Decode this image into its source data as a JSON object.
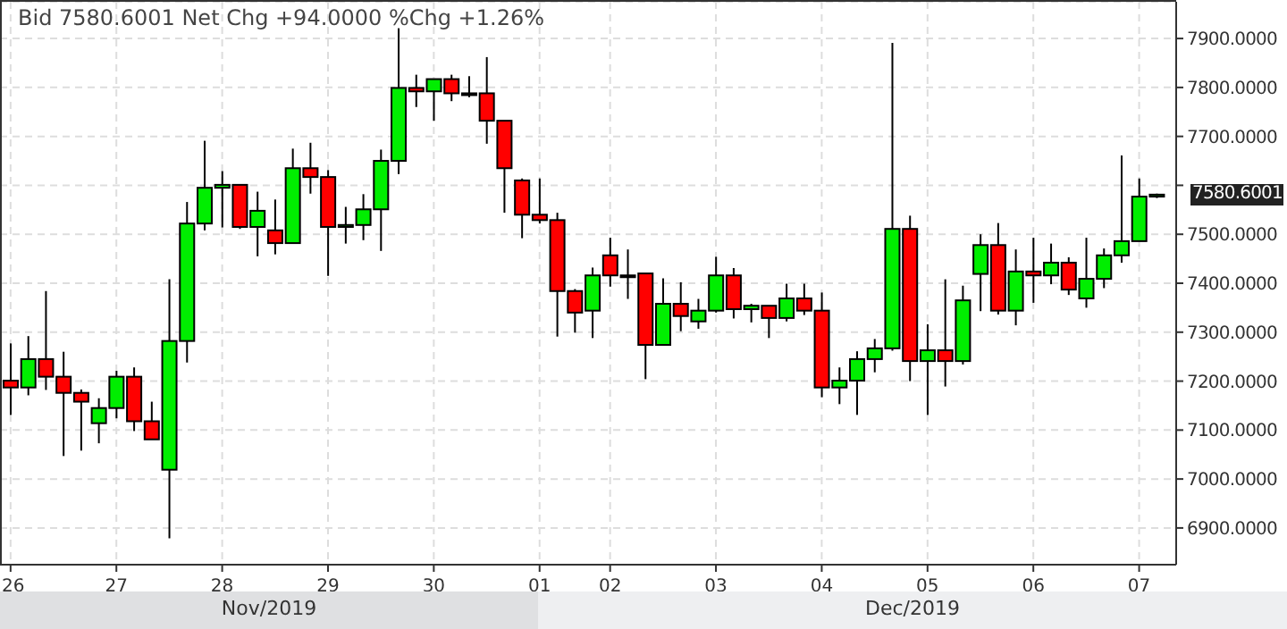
{
  "chart_data": {
    "type": "candlestick",
    "title": "Bid 7580.6001 Net Chg +94.0000 %Chg +1.26%",
    "categories": [
      "26",
      null,
      null,
      null,
      null,
      null,
      "27",
      null,
      null,
      null,
      null,
      null,
      "28",
      null,
      null,
      null,
      null,
      null,
      "29",
      null,
      null,
      null,
      null,
      null,
      "30",
      null,
      null,
      null,
      null,
      null,
      "01",
      null,
      null,
      null,
      "02",
      null,
      null,
      null,
      null,
      null,
      "03",
      null,
      null,
      null,
      null,
      null,
      "04",
      null,
      null,
      null,
      null,
      null,
      "05",
      null,
      null,
      null,
      null,
      null,
      "06",
      null,
      null,
      null,
      null,
      null,
      "07",
      null
    ],
    "ohlc": [
      [
        7201,
        7277,
        7131,
        7187
      ],
      [
        7187,
        7292,
        7171,
        7245
      ],
      [
        7245,
        7384,
        7182,
        7209
      ],
      [
        7209,
        7260,
        7047,
        7176
      ],
      [
        7176,
        7183,
        7058,
        7158
      ],
      [
        7114,
        7165,
        7073,
        7145
      ],
      [
        7145,
        7221,
        7124,
        7209
      ],
      [
        7209,
        7228,
        7098,
        7118
      ],
      [
        7118,
        7158,
        7081,
        7081
      ],
      [
        7019,
        7408,
        6879,
        7282
      ],
      [
        7282,
        7566,
        7238,
        7522
      ],
      [
        7522,
        7691,
        7508,
        7595
      ],
      [
        7595,
        7629,
        7514,
        7601
      ],
      [
        7601,
        7601,
        7511,
        7515
      ],
      [
        7515,
        7587,
        7455,
        7548
      ],
      [
        7508,
        7571,
        7459,
        7482
      ],
      [
        7482,
        7675,
        7482,
        7635
      ],
      [
        7635,
        7687,
        7583,
        7617
      ],
      [
        7617,
        7631,
        7415,
        7515
      ],
      [
        7515,
        7556,
        7481,
        7519
      ],
      [
        7519,
        7582,
        7488,
        7551
      ],
      [
        7551,
        7673,
        7466,
        7650
      ],
      [
        7650,
        7921,
        7623,
        7799
      ],
      [
        7799,
        7826,
        7760,
        7792
      ],
      [
        7792,
        7817,
        7732,
        7817
      ],
      [
        7817,
        7826,
        7772,
        7788
      ],
      [
        7788,
        7823,
        7780,
        7788
      ],
      [
        7788,
        7862,
        7685,
        7732
      ],
      [
        7732,
        7732,
        7544,
        7635
      ],
      [
        7610,
        7614,
        7492,
        7540
      ],
      [
        7540,
        7614,
        7522,
        7529
      ],
      [
        7529,
        7544,
        7291,
        7384
      ],
      [
        7384,
        7388,
        7299,
        7340
      ],
      [
        7344,
        7432,
        7288,
        7416
      ],
      [
        7457,
        7493,
        7393,
        7416
      ],
      [
        7416,
        7469,
        7368,
        7416
      ],
      [
        7420,
        7420,
        7204,
        7274
      ],
      [
        7274,
        7410,
        7274,
        7358
      ],
      [
        7358,
        7402,
        7302,
        7333
      ],
      [
        7322,
        7368,
        7307,
        7344
      ],
      [
        7344,
        7454,
        7340,
        7416
      ],
      [
        7416,
        7431,
        7328,
        7347
      ],
      [
        7347,
        7358,
        7320,
        7354
      ],
      [
        7354,
        7354,
        7288,
        7329
      ],
      [
        7329,
        7399,
        7322,
        7369
      ],
      [
        7369,
        7399,
        7335,
        7344
      ],
      [
        7344,
        7381,
        7167,
        7187
      ],
      [
        7187,
        7228,
        7153,
        7201
      ],
      [
        7201,
        7261,
        7131,
        7245
      ],
      [
        7245,
        7286,
        7218,
        7267
      ],
      [
        7267,
        7891,
        7262,
        7511
      ],
      [
        7511,
        7538,
        7200,
        7241
      ],
      [
        7241,
        7316,
        7131,
        7263
      ],
      [
        7263,
        7408,
        7189,
        7241
      ],
      [
        7241,
        7395,
        7234,
        7365
      ],
      [
        7419,
        7500,
        7343,
        7478
      ],
      [
        7478,
        7523,
        7336,
        7344
      ],
      [
        7344,
        7469,
        7314,
        7424
      ],
      [
        7424,
        7493,
        7360,
        7416
      ],
      [
        7416,
        7481,
        7398,
        7442
      ],
      [
        7442,
        7453,
        7376,
        7387
      ],
      [
        7369,
        7493,
        7350,
        7409
      ],
      [
        7409,
        7471,
        7390,
        7457
      ],
      [
        7457,
        7661,
        7442,
        7486
      ],
      [
        7486,
        7614,
        7486,
        7577
      ],
      [
        7577,
        7583,
        7574,
        7581
      ]
    ],
    "colors": [
      "#ff0000",
      "#00ee00",
      "#ff0000",
      "#ff0000",
      "#ff0000",
      "#00ee00",
      "#00ee00",
      "#ff0000",
      "#ff0000",
      "#00ee00",
      "#00ee00",
      "#00ee00",
      "#00ee00",
      "#ff0000",
      "#00ee00",
      "#ff0000",
      "#00ee00",
      "#ff0000",
      "#ff0000",
      "#00ee00",
      "#00ee00",
      "#00ee00",
      "#00ee00",
      "#ff0000",
      "#00ee00",
      "#ff0000",
      "#00ee00",
      "#ff0000",
      "#ff0000",
      "#ff0000",
      "#ff0000",
      "#ff0000",
      "#ff0000",
      "#00ee00",
      "#ff0000",
      "#00ee00",
      "#ff0000",
      "#00ee00",
      "#ff0000",
      "#00ee00",
      "#00ee00",
      "#ff0000",
      "#00ee00",
      "#ff0000",
      "#00ee00",
      "#ff0000",
      "#ff0000",
      "#00ee00",
      "#00ee00",
      "#00ee00",
      "#00ee00",
      "#ff0000",
      "#00ee00",
      "#ff0000",
      "#00ee00",
      "#00ee00",
      "#ff0000",
      "#00ee00",
      "#ff0000",
      "#00ee00",
      "#ff0000",
      "#00ee00",
      "#00ee00",
      "#00ee00",
      "#00ee00",
      "#00ee00"
    ],
    "ylim": [
      6825,
      7975
    ],
    "yticks": [
      {
        "value": 6900,
        "label": "6900.0000"
      },
      {
        "value": 7000,
        "label": "7000.0000"
      },
      {
        "value": 7100,
        "label": "7100.0000"
      },
      {
        "value": 7200,
        "label": "7200.0000"
      },
      {
        "value": 7300,
        "label": "7300.0000"
      },
      {
        "value": 7400,
        "label": "7400.0000"
      },
      {
        "value": 7500,
        "label": "7500.0000"
      },
      {
        "value": 7600,
        "label": null
      },
      {
        "value": 7700,
        "label": "7700.0000"
      },
      {
        "value": 7800,
        "label": "7800.0000"
      },
      {
        "value": 7900,
        "label": "7900.0000"
      }
    ],
    "grid": true,
    "annotations": [
      "Nov/2019",
      "Dec/2019",
      "7580.6001"
    ]
  }
}
